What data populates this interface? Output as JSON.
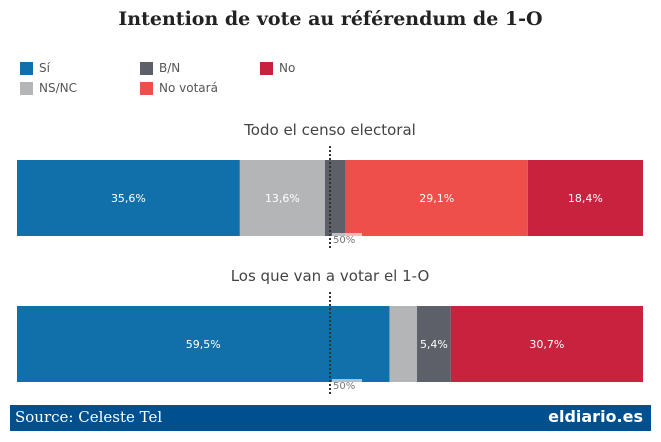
{
  "chart_data": {
    "type": "bar",
    "orientation": "horizontal-stacked-100",
    "title": "Intention de vote au référendum de 1-O",
    "legend": [
      {
        "name": "Sí",
        "color": "#1170aa"
      },
      {
        "name": "B/N",
        "color": "#5d6069"
      },
      {
        "name": "No",
        "color": "#c9223e"
      },
      {
        "name": "NS/NC",
        "color": "#b3b5b6"
      },
      {
        "name": "No votará",
        "color": "#ee4f4a"
      }
    ],
    "legend_position": "top-left",
    "reference_line": {
      "value": 50,
      "label": "50%"
    },
    "bars": [
      {
        "label": "Todo el censo electoral",
        "segments": [
          {
            "series": "Sí",
            "value": 35.6,
            "label": "35,6%"
          },
          {
            "series": "NS/NC",
            "value": 13.6,
            "label": "13,6%"
          },
          {
            "series": "B/N",
            "value": 3.3,
            "label": ""
          },
          {
            "series": "No votará",
            "value": 29.1,
            "label": "29,1%"
          },
          {
            "series": "No",
            "value": 18.4,
            "label": "18,4%"
          }
        ]
      },
      {
        "label": "Los que van a votar el 1-O",
        "segments": [
          {
            "series": "Sí",
            "value": 59.5,
            "label": "59,5%"
          },
          {
            "series": "NS/NC",
            "value": 4.4,
            "label": ""
          },
          {
            "series": "B/N",
            "value": 5.4,
            "label": "5,4%"
          },
          {
            "series": "No",
            "value": 30.7,
            "label": "30,7%"
          }
        ]
      }
    ]
  },
  "footer": {
    "source": "Source: Celeste Tel",
    "logo": "eldiario.es"
  }
}
